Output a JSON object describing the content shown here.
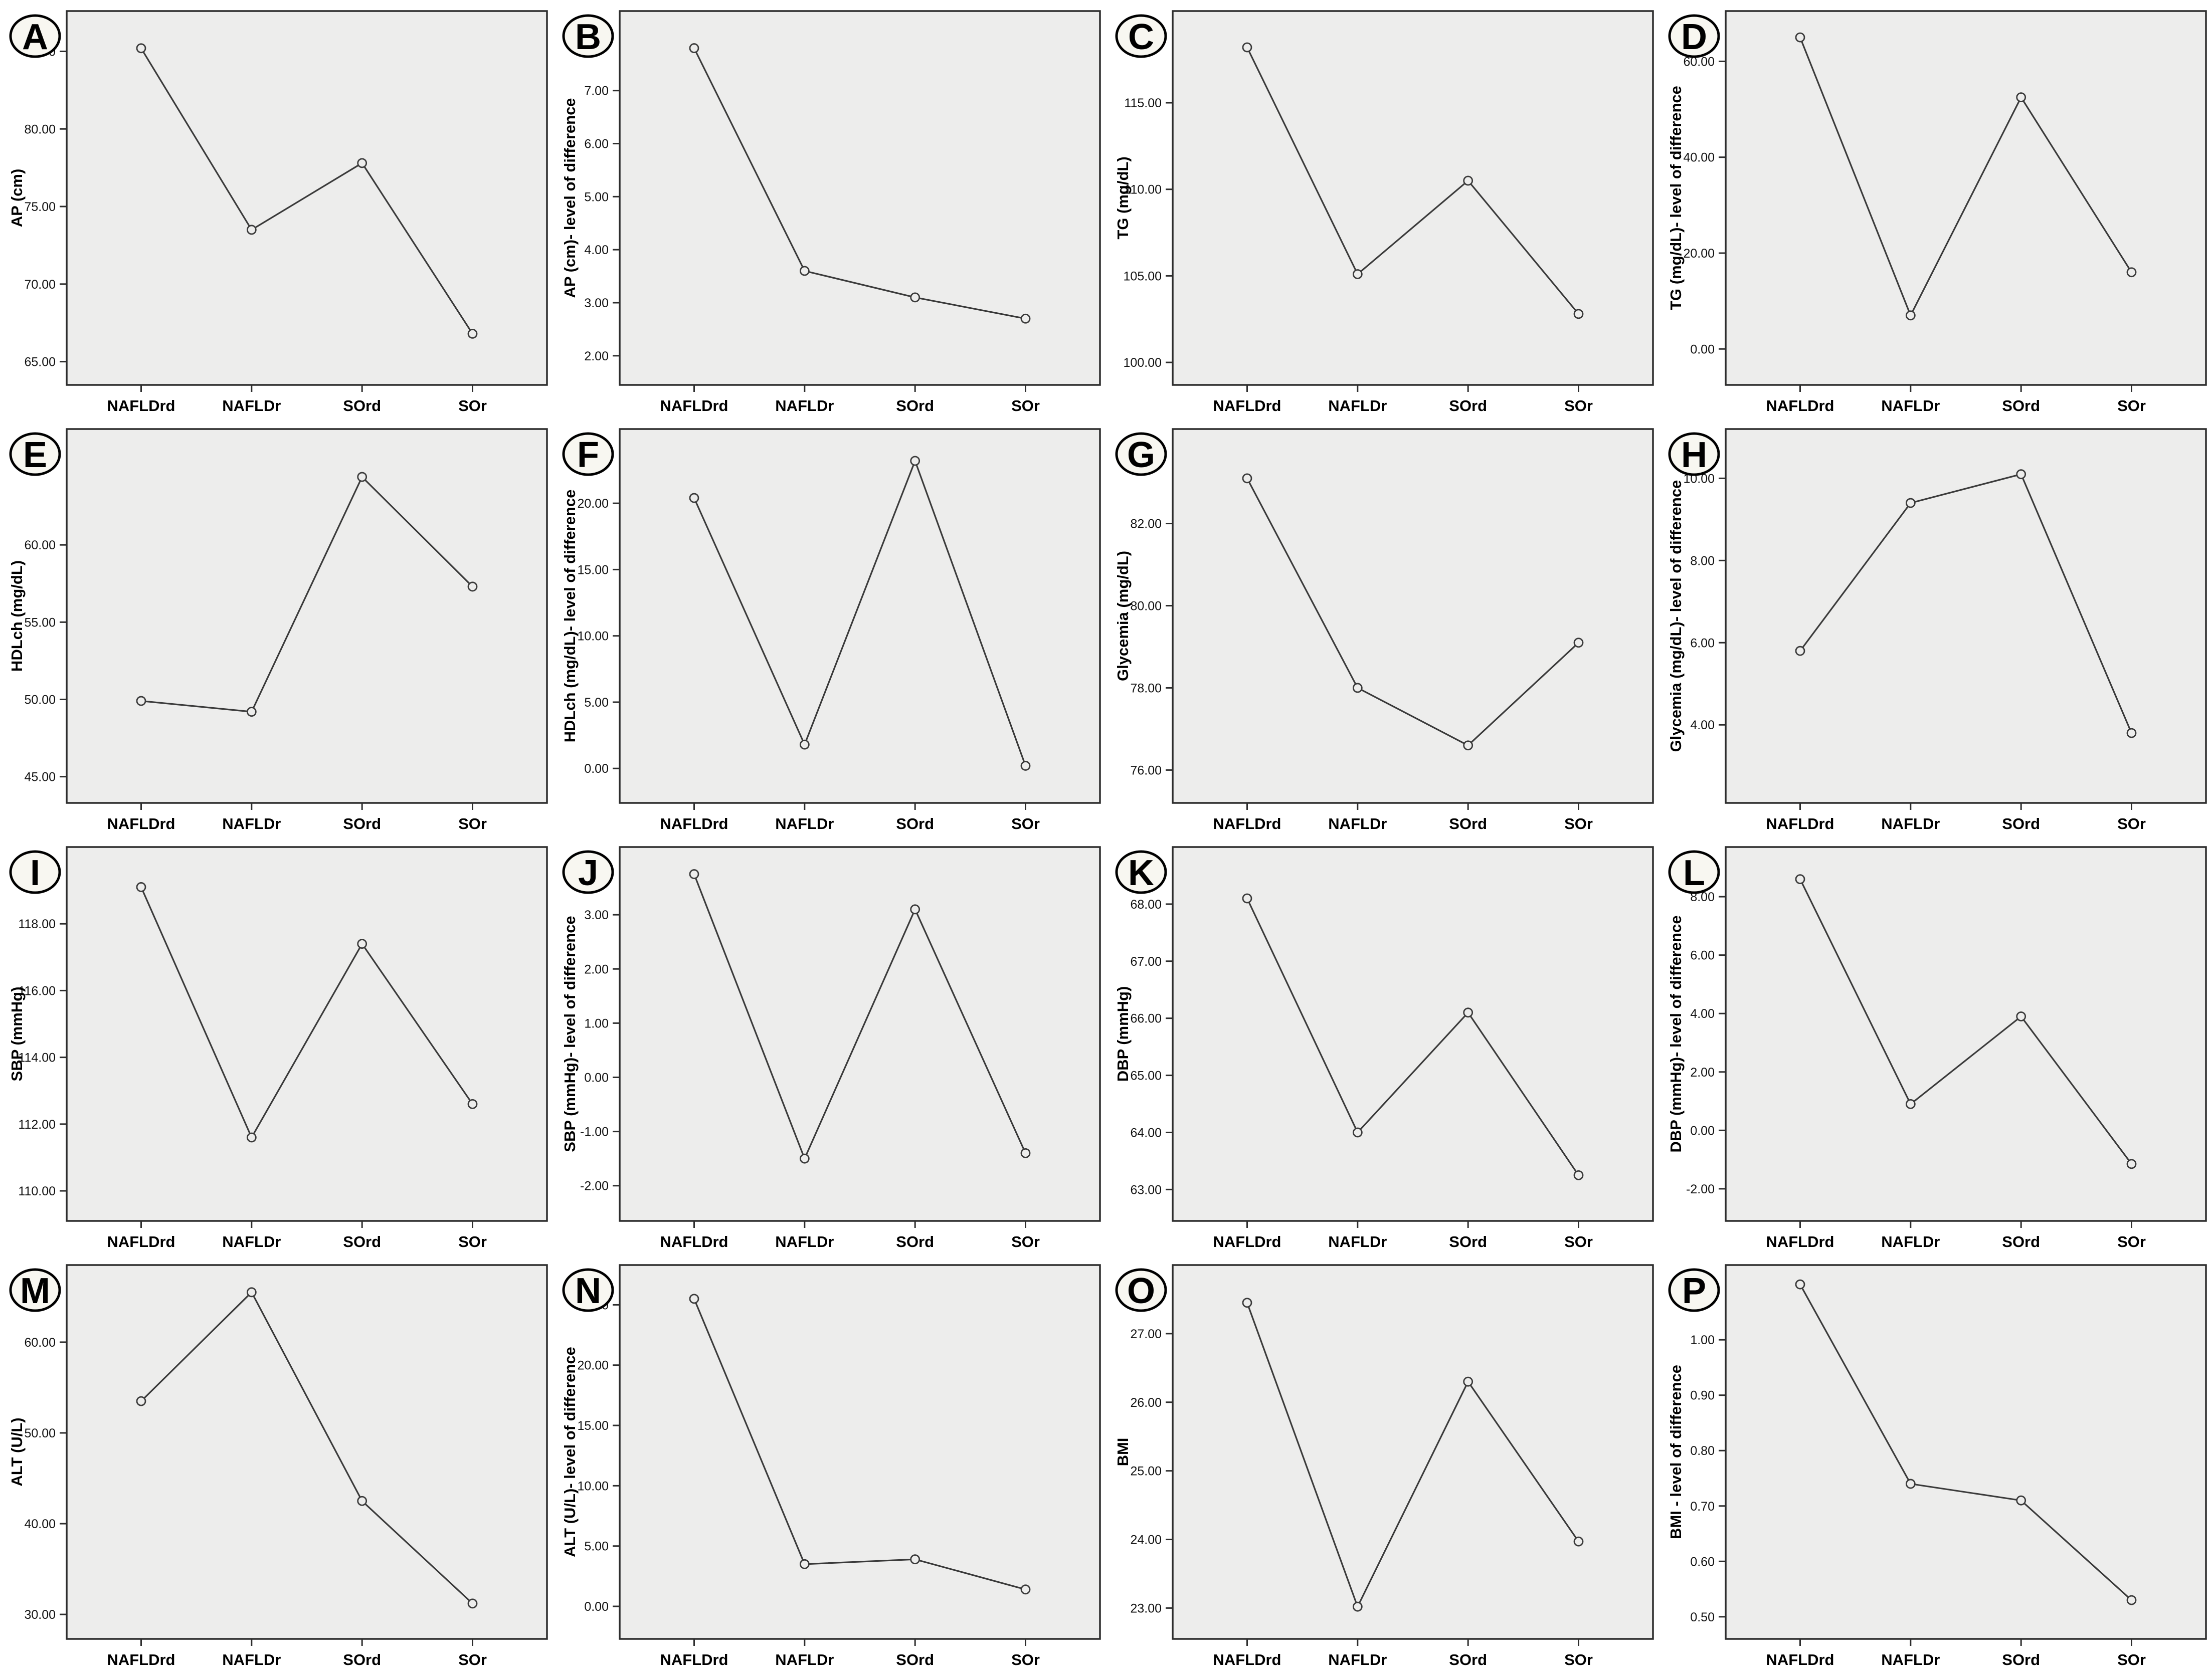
{
  "figure_type": "16-panel line chart figure (SPSS-style mean plots), panels A-P",
  "categories": [
    "NAFLDrd",
    "NAFLDr",
    "SOrd",
    "SOr"
  ],
  "style": {
    "plot_bg": "#ededec",
    "frame_color": "#2d2d2d",
    "line_color": "#3a3a3a",
    "marker": "open-circle",
    "marker_fill": "#ededec",
    "text_color": "#000000",
    "badge_bg": "#f8f7f1",
    "badge_border": "#000000",
    "page_bg": "#ffffff"
  },
  "chart_data": [
    {
      "type": "line",
      "panel": "A",
      "ylabel": "AP (cm)",
      "xlabel": "",
      "categories": [
        "NAFLDrd",
        "NAFLDr",
        "SOrd",
        "SOr"
      ],
      "values": [
        85.2,
        73.5,
        77.8,
        66.8
      ],
      "yticks": [
        65,
        70,
        75,
        80,
        85
      ],
      "ylim": [
        63.5,
        87.6
      ],
      "grid": false,
      "legend": "none"
    },
    {
      "type": "line",
      "panel": "B",
      "ylabel": "AP (cm)- level of difference",
      "xlabel": "",
      "categories": [
        "NAFLDrd",
        "NAFLDr",
        "SOrd",
        "SOr"
      ],
      "values": [
        7.8,
        3.6,
        3.1,
        2.7
      ],
      "yticks": [
        2,
        3,
        4,
        5,
        6,
        7
      ],
      "ylim": [
        1.45,
        8.5
      ],
      "grid": false,
      "legend": "none"
    },
    {
      "type": "line",
      "panel": "C",
      "ylabel": "TG (mg/dL)",
      "xlabel": "",
      "categories": [
        "NAFLDrd",
        "NAFLDr",
        "SOrd",
        "SOr"
      ],
      "values": [
        118.2,
        105.1,
        110.5,
        102.8
      ],
      "yticks": [
        100,
        105,
        110,
        115
      ],
      "ylim": [
        98.7,
        120.3
      ],
      "grid": false,
      "legend": "none"
    },
    {
      "type": "line",
      "panel": "D",
      "ylabel": "TG (mg/dL)- level of difference",
      "xlabel": "",
      "categories": [
        "NAFLDrd",
        "NAFLDr",
        "SOrd",
        "SOr"
      ],
      "values": [
        65,
        7,
        52.5,
        16
      ],
      "yticks": [
        0,
        20,
        40,
        60
      ],
      "ylim": [
        -7.5,
        70.5
      ],
      "grid": false,
      "legend": "none"
    },
    {
      "type": "line",
      "panel": "E",
      "ylabel": "HDLch (mg/dL)",
      "xlabel": "",
      "categories": [
        "NAFLDrd",
        "NAFLDr",
        "SOrd",
        "SOr"
      ],
      "values": [
        49.9,
        49.2,
        64.4,
        57.3
      ],
      "yticks": [
        45,
        50,
        55,
        60
      ],
      "ylim": [
        43.3,
        67.5
      ],
      "grid": false,
      "legend": "none"
    },
    {
      "type": "line",
      "panel": "F",
      "ylabel": "HDLch (mg/dL)- level of difference",
      "xlabel": "",
      "categories": [
        "NAFLDrd",
        "NAFLDr",
        "SOrd",
        "SOr"
      ],
      "values": [
        20.4,
        1.8,
        23.2,
        0.2
      ],
      "yticks": [
        0,
        5,
        10,
        15,
        20
      ],
      "ylim": [
        -2.6,
        25.6
      ],
      "grid": false,
      "legend": "none"
    },
    {
      "type": "line",
      "panel": "G",
      "ylabel": "Glycemia (mg/dL)",
      "xlabel": "",
      "categories": [
        "NAFLDrd",
        "NAFLDr",
        "SOrd",
        "SOr"
      ],
      "values": [
        83.1,
        78.0,
        76.6,
        79.1
      ],
      "yticks": [
        76,
        78,
        80,
        82
      ],
      "ylim": [
        75.2,
        84.3
      ],
      "grid": false,
      "legend": "none"
    },
    {
      "type": "line",
      "panel": "H",
      "ylabel": "Glycemia (mg/dL)- level of difference",
      "xlabel": "",
      "categories": [
        "NAFLDrd",
        "NAFLDr",
        "SOrd",
        "SOr"
      ],
      "values": [
        5.8,
        9.4,
        10.1,
        3.8
      ],
      "yticks": [
        4,
        6,
        8,
        10
      ],
      "ylim": [
        2.1,
        11.2
      ],
      "grid": false,
      "legend": "none"
    },
    {
      "type": "line",
      "panel": "I",
      "ylabel": "SBP (mmHg)",
      "xlabel": "",
      "categories": [
        "NAFLDrd",
        "NAFLDr",
        "SOrd",
        "SOr"
      ],
      "values": [
        119.1,
        111.6,
        117.4,
        112.6
      ],
      "yticks": [
        110,
        112,
        114,
        116,
        118
      ],
      "ylim": [
        109.1,
        120.3
      ],
      "grid": false,
      "legend": "none"
    },
    {
      "type": "line",
      "panel": "J",
      "ylabel": "SBP (mmHg)- level of difference",
      "xlabel": "",
      "categories": [
        "NAFLDrd",
        "NAFLDr",
        "SOrd",
        "SOr"
      ],
      "values": [
        3.75,
        -1.5,
        3.1,
        -1.4
      ],
      "yticks": [
        -2,
        -1,
        0,
        1,
        2,
        3
      ],
      "ylim": [
        -2.65,
        4.25
      ],
      "grid": false,
      "legend": "none"
    },
    {
      "type": "line",
      "panel": "K",
      "ylabel": "DBP (mmHg)",
      "xlabel": "",
      "categories": [
        "NAFLDrd",
        "NAFLDr",
        "SOrd",
        "SOr"
      ],
      "values": [
        68.1,
        64.0,
        66.1,
        63.25
      ],
      "yticks": [
        63,
        64,
        65,
        66,
        67,
        68
      ],
      "ylim": [
        62.45,
        69.0
      ],
      "grid": false,
      "legend": "none"
    },
    {
      "type": "line",
      "panel": "L",
      "ylabel": "DBP (mmHg)- level of difference",
      "xlabel": "",
      "categories": [
        "NAFLDrd",
        "NAFLDr",
        "SOrd",
        "SOr"
      ],
      "values": [
        8.6,
        0.9,
        3.9,
        -1.15
      ],
      "yticks": [
        -2,
        0,
        2,
        4,
        6,
        8
      ],
      "ylim": [
        -3.1,
        9.7
      ],
      "grid": false,
      "legend": "none"
    },
    {
      "type": "line",
      "panel": "M",
      "ylabel": "ALT (U/L)",
      "xlabel": "",
      "categories": [
        "NAFLDrd",
        "NAFLDr",
        "SOrd",
        "SOr"
      ],
      "values": [
        53.5,
        65.5,
        42.5,
        31.2
      ],
      "yticks": [
        30,
        40,
        50,
        60
      ],
      "ylim": [
        27.3,
        68.5
      ],
      "grid": false,
      "legend": "none"
    },
    {
      "type": "line",
      "panel": "N",
      "ylabel": "ALT (U/L)- level of difference",
      "xlabel": "",
      "categories": [
        "NAFLDrd",
        "NAFLDr",
        "SOrd",
        "SOr"
      ],
      "values": [
        25.5,
        3.5,
        3.9,
        1.4
      ],
      "yticks": [
        0,
        5,
        10,
        15,
        20,
        25
      ],
      "ylim": [
        -2.7,
        28.3
      ],
      "grid": false,
      "legend": "none"
    },
    {
      "type": "line",
      "panel": "O",
      "ylabel": "BMI",
      "xlabel": "",
      "categories": [
        "NAFLDrd",
        "NAFLDr",
        "SOrd",
        "SOr"
      ],
      "values": [
        27.45,
        23.02,
        26.3,
        23.97
      ],
      "yticks": [
        23,
        24,
        25,
        26,
        27
      ],
      "ylim": [
        22.55,
        28.0
      ],
      "grid": false,
      "legend": "none"
    },
    {
      "type": "line",
      "panel": "P",
      "ylabel": "BMI - level of difference",
      "xlabel": "",
      "categories": [
        "NAFLDrd",
        "NAFLDr",
        "SOrd",
        "SOr"
      ],
      "values": [
        1.1,
        0.74,
        0.71,
        0.53
      ],
      "yticks": [
        0.5,
        0.6,
        0.7,
        0.8,
        0.9,
        1.0
      ],
      "ylim": [
        0.46,
        1.135
      ],
      "grid": false,
      "legend": "none"
    }
  ]
}
